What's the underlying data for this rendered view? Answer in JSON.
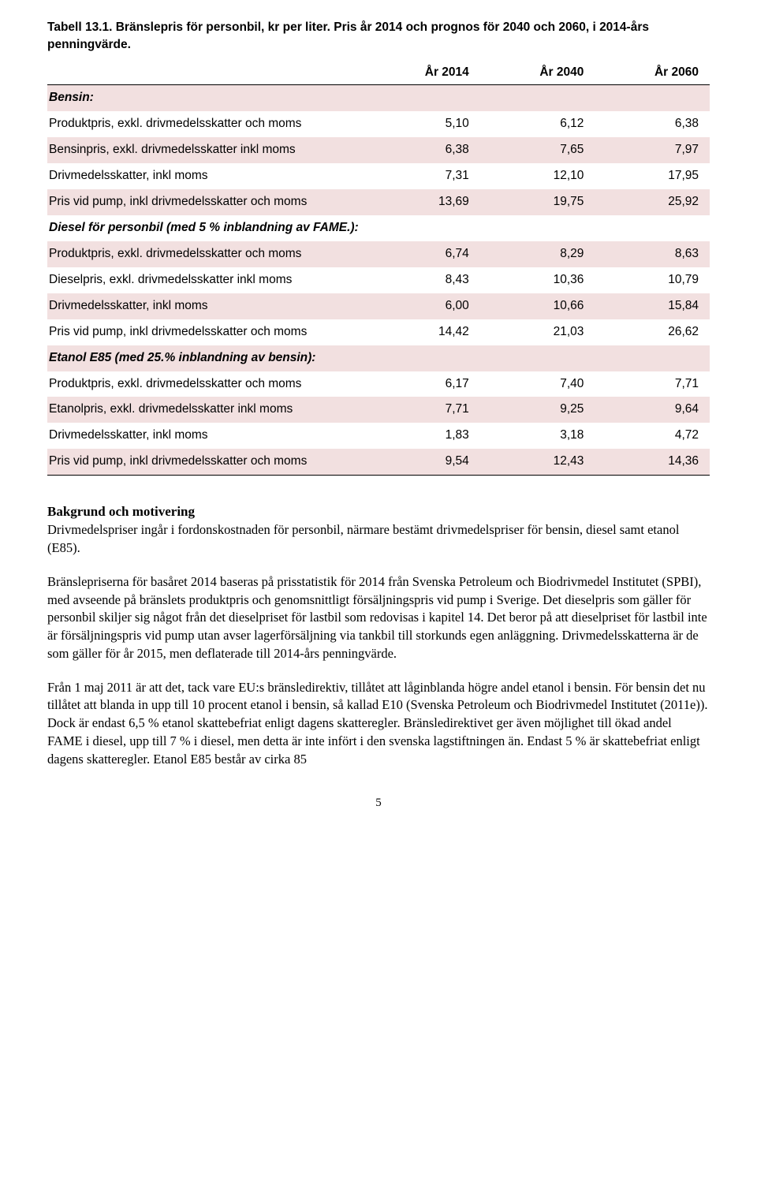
{
  "table": {
    "title": "Tabell 13.1. Bränslepris för personbil, kr per liter. Pris år 2014 och prognos för 2040 och 2060, i 2014-års penningvärde.",
    "columns": [
      "",
      "År 2014",
      "År 2040",
      "År 2060"
    ],
    "sections": [
      {
        "header": "Bensin:",
        "rows": [
          {
            "label": "Produktpris, exkl. drivmedelsskatter och moms",
            "c1": "5,10",
            "c2": "6,12",
            "c3": "6,38",
            "alt": false
          },
          {
            "label": "Bensinpris, exkl. drivmedelsskatter inkl moms",
            "c1": "6,38",
            "c2": "7,65",
            "c3": "7,97",
            "alt": true
          },
          {
            "label": "Drivmedelsskatter, inkl moms",
            "c1": "7,31",
            "c2": "12,10",
            "c3": "17,95",
            "alt": false
          },
          {
            "label": "Pris vid pump, inkl drivmedelsskatter och moms",
            "c1": "13,69",
            "c2": "19,75",
            "c3": "25,92",
            "alt": true
          }
        ]
      },
      {
        "header": "Diesel för personbil (med 5 % inblandning av FAME.):",
        "rows": [
          {
            "label": "Produktpris, exkl. drivmedelsskatter och moms",
            "c1": "6,74",
            "c2": "8,29",
            "c3": "8,63",
            "alt": true
          },
          {
            "label": "Dieselpris, exkl. drivmedelsskatter inkl moms",
            "c1": "8,43",
            "c2": "10,36",
            "c3": "10,79",
            "alt": false
          },
          {
            "label": "Drivmedelsskatter, inkl moms",
            "c1": "6,00",
            "c2": "10,66",
            "c3": "15,84",
            "alt": true
          },
          {
            "label": "Pris vid pump, inkl drivmedelsskatter och moms",
            "c1": "14,42",
            "c2": "21,03",
            "c3": "26,62",
            "alt": false
          }
        ]
      },
      {
        "header": "Etanol E85 (med 25.% inblandning av bensin):",
        "rows": [
          {
            "label": "Produktpris, exkl. drivmedelsskatter och moms",
            "c1": "6,17",
            "c2": "7,40",
            "c3": "7,71",
            "alt": false
          },
          {
            "label": "Etanolpris, exkl. drivmedelsskatter inkl moms",
            "c1": "7,71",
            "c2": "9,25",
            "c3": "9,64",
            "alt": true
          },
          {
            "label": "Drivmedelsskatter, inkl moms",
            "c1": "1,83",
            "c2": "3,18",
            "c3": "4,72",
            "alt": false
          },
          {
            "label": "Pris vid pump, inkl drivmedelsskatter och moms",
            "c1": "9,54",
            "c2": "12,43",
            "c3": "14,36",
            "alt": true
          }
        ]
      }
    ],
    "styling": {
      "alt_row_bg": "#f2e0e0",
      "header_border_color": "#000000",
      "font_family": "Arial",
      "font_size_pt": 12
    }
  },
  "body": {
    "heading": "Bakgrund och motivering",
    "paragraphs": [
      "Drivmedelspriser ingår i fordonskostnaden för personbil, närmare bestämt drivmedelspriser för bensin, diesel samt etanol (E85).",
      "Bränslepriserna för basåret 2014 baseras på prisstatistik för 2014 från Svenska Petroleum och Biodrivmedel Institutet (SPBI), med avseende på bränslets produktpris och genomsnittligt försäljningspris vid pump i Sverige. Det dieselpris som gäller för personbil skiljer sig något från det dieselpriset för lastbil som redovisas i kapitel 14. Det beror på att dieselpriset för lastbil inte är försäljningspris vid pump utan avser lagerförsäljning via tankbil till storkunds egen anläggning. Drivmedelsskatterna är de som gäller för år 2015, men deflaterade till 2014-års penningvärde.",
      "Från 1 maj 2011 är att det, tack vare EU:s bränsledirektiv, tillåtet att låginblanda högre andel etanol i bensin. För bensin det nu tillåtet att blanda in upp till 10 procent etanol i bensin, så kallad E10 (Svenska Petroleum och Biodrivmedel Institutet (2011e)). Dock är endast 6,5 % etanol skattebefriat enligt dagens skatteregler. Bränsledirektivet ger även möjlighet till ökad andel FAME i diesel, upp till 7 % i diesel, men detta är inte infört i den svenska lagstiftningen än. Endast 5 % är skattebefriat enligt dagens skatteregler. Etanol E85 består av cirka 85"
    ]
  },
  "page_number": "5"
}
